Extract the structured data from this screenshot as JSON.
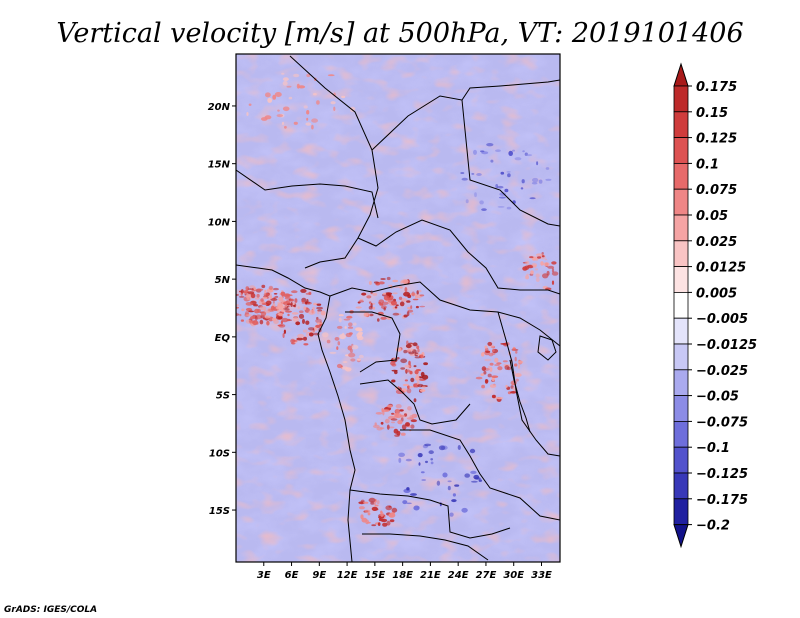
{
  "chart_data": {
    "type": "heatmap",
    "title": "Vertical velocity [m/s] at 500hPa, VT: 2019101406",
    "xlabel": "",
    "ylabel": "",
    "xlim": [
      0,
      35
    ],
    "ylim": [
      -19.5,
      24.5
    ],
    "x_ticks": [
      {
        "value": 3,
        "label": "3E"
      },
      {
        "value": 6,
        "label": "6E"
      },
      {
        "value": 9,
        "label": "9E"
      },
      {
        "value": 12,
        "label": "12E"
      },
      {
        "value": 15,
        "label": "15E"
      },
      {
        "value": 18,
        "label": "18E"
      },
      {
        "value": 21,
        "label": "21E"
      },
      {
        "value": 24,
        "label": "24E"
      },
      {
        "value": 27,
        "label": "27E"
      },
      {
        "value": 30,
        "label": "30E"
      },
      {
        "value": 33,
        "label": "33E"
      }
    ],
    "y_ticks": [
      {
        "value": 20,
        "label": "20N"
      },
      {
        "value": 15,
        "label": "15N"
      },
      {
        "value": 10,
        "label": "10N"
      },
      {
        "value": 5,
        "label": "5N"
      },
      {
        "value": 0,
        "label": "EQ"
      },
      {
        "value": -5,
        "label": "5S"
      },
      {
        "value": -10,
        "label": "10S"
      },
      {
        "value": -15,
        "label": "15S"
      }
    ],
    "colorbar": {
      "labels": [
        "0.175",
        "0.15",
        "0.125",
        "0.1",
        "0.075",
        "0.05",
        "0.025",
        "0.0125",
        "0.005",
        "−0.005",
        "−0.0125",
        "−0.025",
        "−0.05",
        "−0.075",
        "−0.1",
        "−0.125",
        "−0.175",
        "−0.2"
      ],
      "colors": [
        "#a81a1a",
        "#bd2a2a",
        "#cf3c3c",
        "#dd5252",
        "#e76a6a",
        "#ef8686",
        "#f5a4a4",
        "#f9c4c4",
        "#fde3e3",
        "#ffffff",
        "#e4e4fb",
        "#c8c8f5",
        "#aaaaef",
        "#8c8ce6",
        "#6e6edb",
        "#5252cc",
        "#3838b8",
        "#2020a0",
        "#12128a"
      ],
      "extends": "both"
    },
    "grid": false,
    "legend_placement": "right"
  },
  "credit": "GrADS: IGES/COLA"
}
